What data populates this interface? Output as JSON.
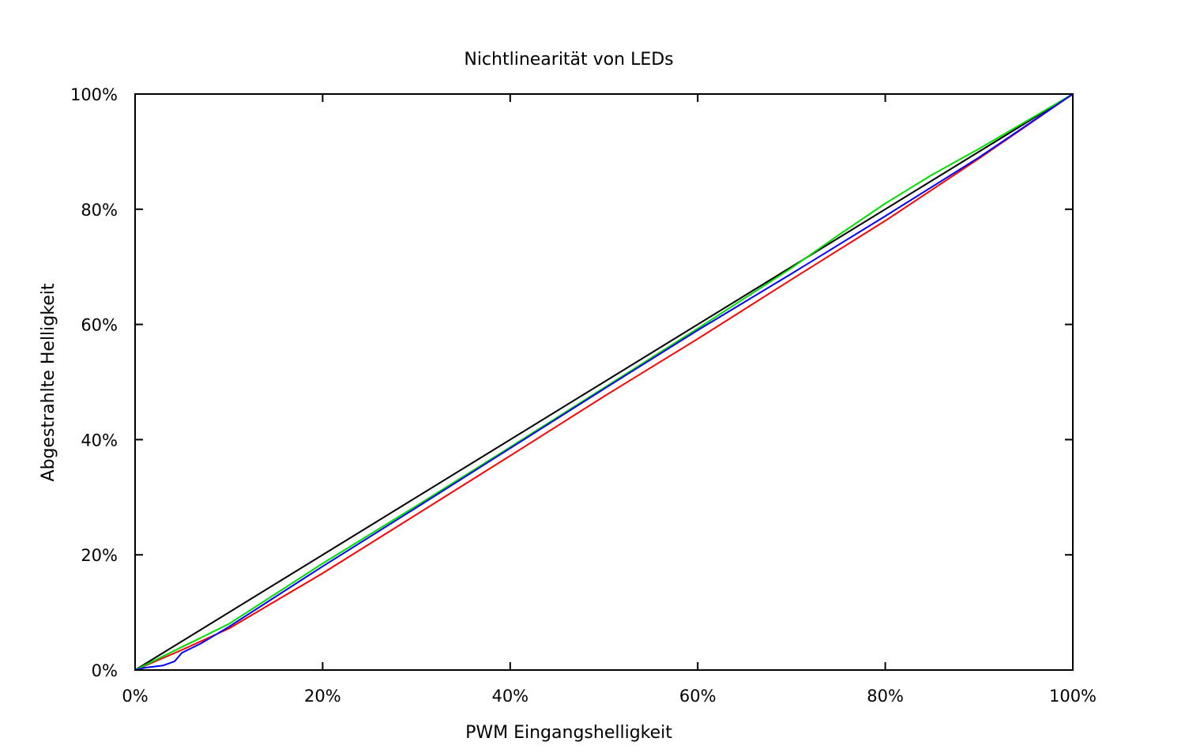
{
  "chart_data": {
    "type": "line",
    "title": "Nichtlinearität von LEDs",
    "xlabel": "PWM Eingangshelligkeit",
    "ylabel": "Abgestrahlte Helligkeit",
    "xlim": [
      0,
      100
    ],
    "ylim": [
      0,
      100
    ],
    "grid": false,
    "legend": "none",
    "x_ticks": [
      0,
      20,
      40,
      60,
      80,
      100
    ],
    "x_tick_labels": [
      "0%",
      "20%",
      "40%",
      "60%",
      "80%",
      "100%"
    ],
    "y_ticks": [
      0,
      20,
      40,
      60,
      80,
      100
    ],
    "y_tick_labels": [
      "0%",
      "20%",
      "40%",
      "60%",
      "80%",
      "100%"
    ],
    "series": [
      {
        "color": "#000000",
        "x": [
          0,
          100
        ],
        "y": [
          0,
          100
        ]
      },
      {
        "color": "#ff0000",
        "x": [
          0,
          5,
          10,
          20,
          30,
          40,
          50,
          60,
          70,
          80,
          90,
          100
        ],
        "y": [
          0,
          3.5,
          7.2,
          16.8,
          27,
          37.2,
          47.5,
          57.5,
          67.8,
          78,
          88.8,
          100
        ]
      },
      {
        "color": "#00dd00",
        "x": [
          0,
          5,
          10,
          20,
          30,
          40,
          50,
          60,
          70,
          75,
          80,
          85,
          90,
          100
        ],
        "y": [
          0,
          4,
          8,
          18.5,
          28.5,
          38.7,
          49,
          59.3,
          69.8,
          75.5,
          81,
          86,
          90.5,
          100
        ]
      },
      {
        "color": "#0000ff",
        "x": [
          0,
          1,
          3,
          4.2,
          5,
          7,
          10,
          20,
          30,
          40,
          50,
          60,
          70,
          80,
          90,
          100
        ],
        "y": [
          0,
          0.4,
          0.8,
          1.5,
          3,
          4.6,
          7.5,
          18,
          28.2,
          38.5,
          48.8,
          59,
          68.8,
          78.8,
          89,
          100
        ]
      }
    ]
  }
}
